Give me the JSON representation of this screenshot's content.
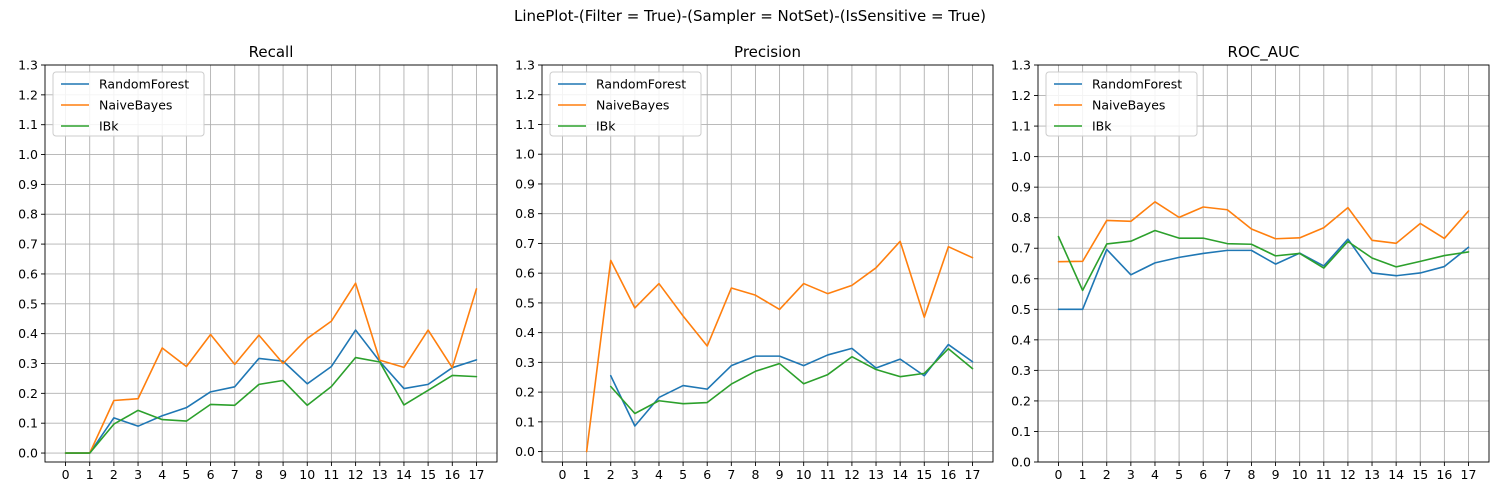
{
  "suptitle": "LinePlot-(Filter = True)-(Sampler = NotSet)-(IsSensitive = True)",
  "colors": {
    "RandomForest": "#1f77b4",
    "NaiveBayes": "#ff7f0e",
    "IBk": "#2ca02c"
  },
  "chart_data": [
    {
      "type": "line",
      "title": "Recall",
      "xlabel": "",
      "ylabel": "",
      "x": [
        0,
        1,
        2,
        3,
        4,
        5,
        6,
        7,
        8,
        9,
        10,
        11,
        12,
        13,
        14,
        15,
        16,
        17
      ],
      "xticks": [
        "0",
        "1",
        "2",
        "3",
        "4",
        "5",
        "6",
        "7",
        "8",
        "9",
        "10",
        "11",
        "12",
        "13",
        "14",
        "15",
        "16",
        "17"
      ],
      "ylim": [
        -0.03,
        1.3
      ],
      "yticks": [
        "0.0",
        "0.1",
        "0.2",
        "0.3",
        "0.4",
        "0.5",
        "0.6",
        "0.7",
        "0.8",
        "0.9",
        "1.0",
        "1.1",
        "1.2",
        "1.3"
      ],
      "grid": true,
      "legend_position": "upper-left",
      "series": [
        {
          "name": "RandomForest",
          "values": [
            0.0,
            0.0,
            0.118,
            0.09,
            0.125,
            0.152,
            0.205,
            0.222,
            0.317,
            0.308,
            0.232,
            0.29,
            0.412,
            0.307,
            0.216,
            0.23,
            0.286,
            0.312
          ]
        },
        {
          "name": "NaiveBayes",
          "values": [
            0.0,
            0.0,
            0.176,
            0.182,
            0.352,
            0.29,
            0.397,
            0.297,
            0.395,
            0.3,
            0.384,
            0.442,
            0.569,
            0.311,
            0.287,
            0.412,
            0.286,
            0.55
          ]
        },
        {
          "name": "IBk",
          "values": [
            0.0,
            0.0,
            0.097,
            0.143,
            0.112,
            0.107,
            0.163,
            0.16,
            0.23,
            0.243,
            0.16,
            0.223,
            0.32,
            0.305,
            0.161,
            0.21,
            0.26,
            0.256
          ]
        }
      ]
    },
    {
      "type": "line",
      "title": "Precision",
      "xlabel": "",
      "ylabel": "",
      "x": [
        0,
        1,
        2,
        3,
        4,
        5,
        6,
        7,
        8,
        9,
        10,
        11,
        12,
        13,
        14,
        15,
        16,
        17
      ],
      "xticks": [
        "0",
        "1",
        "2",
        "3",
        "4",
        "5",
        "6",
        "7",
        "8",
        "9",
        "10",
        "11",
        "12",
        "13",
        "14",
        "15",
        "16",
        "17"
      ],
      "ylim": [
        -0.035,
        1.3
      ],
      "yticks": [
        "0.0",
        "0.1",
        "0.2",
        "0.3",
        "0.4",
        "0.5",
        "0.6",
        "0.7",
        "0.8",
        "0.9",
        "1.0",
        "1.1",
        "1.2",
        "1.3"
      ],
      "grid": true,
      "legend_position": "upper-left",
      "series": [
        {
          "name": "RandomForest",
          "x": [
            2,
            3,
            4,
            5,
            6,
            7,
            8,
            9,
            10,
            11,
            12,
            13,
            14,
            15,
            16,
            17
          ],
          "values": [
            0.255,
            0.086,
            0.182,
            0.222,
            0.21,
            0.289,
            0.321,
            0.321,
            0.289,
            0.325,
            0.347,
            0.281,
            0.311,
            0.255,
            0.36,
            0.302
          ]
        },
        {
          "name": "NaiveBayes",
          "x": [
            1,
            2,
            3,
            4,
            5,
            6,
            7,
            8,
            9,
            10,
            11,
            12,
            13,
            14,
            15,
            16,
            17
          ],
          "values": [
            0.0,
            0.643,
            0.483,
            0.565,
            0.456,
            0.355,
            0.55,
            0.526,
            0.478,
            0.565,
            0.531,
            0.559,
            0.618,
            0.707,
            0.452,
            0.689,
            0.652
          ]
        },
        {
          "name": "IBk",
          "x": [
            2,
            3,
            4,
            5,
            6,
            7,
            8,
            9,
            10,
            11,
            12,
            13,
            14,
            15,
            16,
            17
          ],
          "values": [
            0.219,
            0.128,
            0.171,
            0.161,
            0.165,
            0.227,
            0.27,
            0.296,
            0.228,
            0.259,
            0.319,
            0.276,
            0.252,
            0.263,
            0.346,
            0.279
          ]
        }
      ]
    },
    {
      "type": "line",
      "title": "ROC_AUC",
      "xlabel": "",
      "ylabel": "",
      "x": [
        0,
        1,
        2,
        3,
        4,
        5,
        6,
        7,
        8,
        9,
        10,
        11,
        12,
        13,
        14,
        15,
        16,
        17
      ],
      "xticks": [
        "0",
        "1",
        "2",
        "3",
        "4",
        "5",
        "6",
        "7",
        "8",
        "9",
        "10",
        "11",
        "12",
        "13",
        "14",
        "15",
        "16",
        "17"
      ],
      "ylim": [
        0.0,
        1.3
      ],
      "yticks": [
        "0.0",
        "0.1",
        "0.2",
        "0.3",
        "0.4",
        "0.5",
        "0.6",
        "0.7",
        "0.8",
        "0.9",
        "1.0",
        "1.1",
        "1.2",
        "1.3"
      ],
      "grid": true,
      "legend_position": "upper-left",
      "series": [
        {
          "name": "RandomForest",
          "values": [
            0.5,
            0.5,
            0.696,
            0.613,
            0.652,
            0.67,
            0.683,
            0.693,
            0.693,
            0.648,
            0.684,
            0.642,
            0.73,
            0.619,
            0.61,
            0.619,
            0.64,
            0.703
          ]
        },
        {
          "name": "NaiveBayes",
          "values": [
            0.656,
            0.657,
            0.791,
            0.788,
            0.852,
            0.801,
            0.835,
            0.826,
            0.763,
            0.731,
            0.734,
            0.767,
            0.833,
            0.726,
            0.716,
            0.781,
            0.732,
            0.822
          ]
        },
        {
          "name": "IBk",
          "values": [
            0.738,
            0.562,
            0.714,
            0.723,
            0.758,
            0.733,
            0.733,
            0.715,
            0.713,
            0.675,
            0.683,
            0.635,
            0.722,
            0.668,
            0.639,
            0.657,
            0.676,
            0.688
          ]
        }
      ]
    }
  ]
}
